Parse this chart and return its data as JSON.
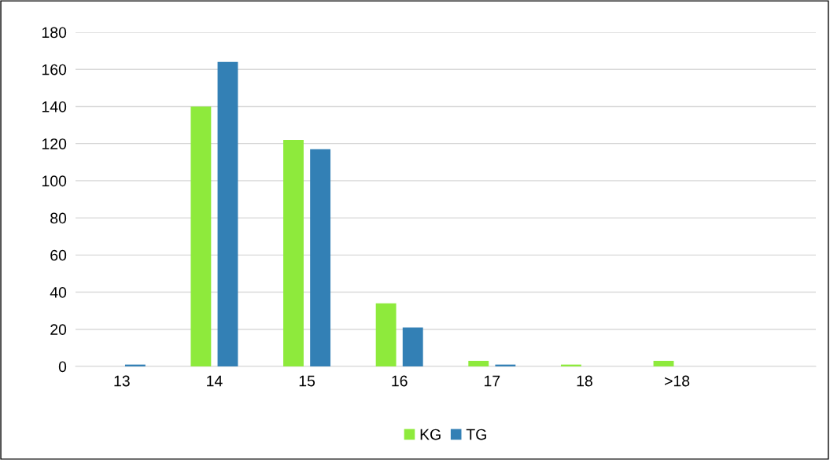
{
  "chart_data": {
    "type": "bar",
    "categories": [
      "13",
      "14",
      "15",
      "16",
      "17",
      "18",
      ">18",
      null
    ],
    "series": [
      {
        "name": "KG",
        "color": "#8eea3c",
        "values": [
          0,
          140,
          122,
          34,
          3,
          1,
          3,
          null
        ]
      },
      {
        "name": "TG",
        "color": "#3380b5",
        "values": [
          1,
          164,
          117,
          21,
          1,
          0,
          0,
          null
        ]
      }
    ],
    "ylim": [
      0,
      180
    ],
    "yticks": [
      0,
      20,
      40,
      60,
      80,
      100,
      120,
      140,
      160,
      180
    ],
    "grid": "y",
    "legend": "bottom"
  }
}
